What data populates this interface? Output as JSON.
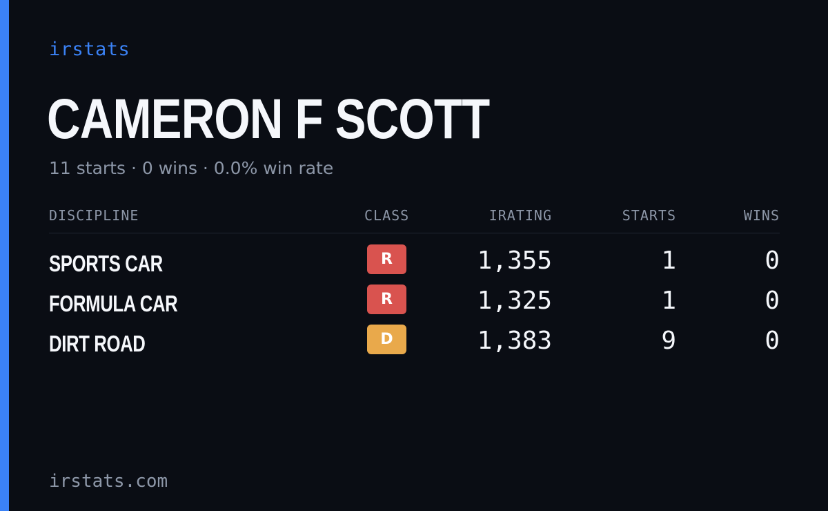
{
  "brand": "irstats",
  "driver": {
    "name": "CAMERON F SCOTT",
    "summary": "11 starts · 0 wins · 0.0% win rate"
  },
  "table": {
    "headers": {
      "discipline": "DISCIPLINE",
      "class": "CLASS",
      "irating": "IRATING",
      "starts": "STARTS",
      "wins": "WINS"
    },
    "rows": [
      {
        "discipline": "SPORTS CAR",
        "class": "R",
        "irating": "1,355",
        "starts": "1",
        "wins": "0"
      },
      {
        "discipline": "FORMULA CAR",
        "class": "R",
        "irating": "1,325",
        "starts": "1",
        "wins": "0"
      },
      {
        "discipline": "DIRT ROAD",
        "class": "D",
        "irating": "1,383",
        "starts": "9",
        "wins": "0"
      }
    ]
  },
  "footer": "irstats.com",
  "colors": {
    "background": "#0a0d14",
    "accent": "#3b82f6",
    "class_r": "#d9534f",
    "class_d": "#e9a94b",
    "text_primary": "#f5f7fb",
    "text_muted": "#8d97a8"
  }
}
